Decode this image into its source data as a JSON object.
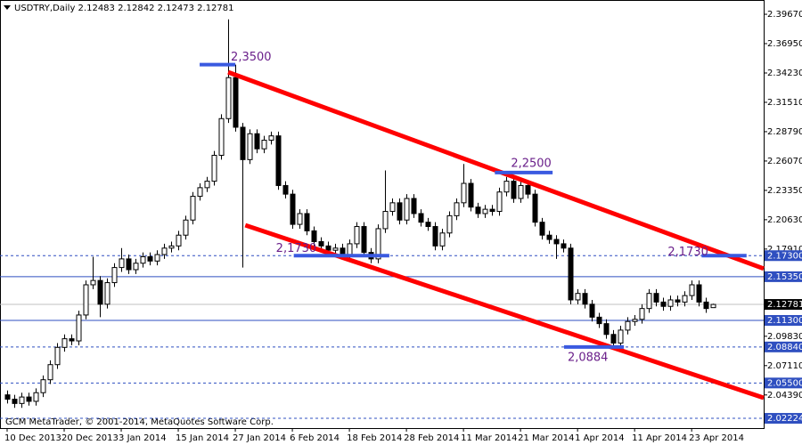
{
  "chart_data": {
    "type": "candlestick",
    "header": "USDTRY,Daily  2.12483 2.12842 2.12473 2.12781",
    "footer": "GCM MetaTrader, © 2001-2014, MetaQuotes Software Corp.",
    "categories": [
      "10 Dec 2013",
      null,
      null,
      null,
      null,
      null,
      null,
      null,
      "20 Dec 2013",
      null,
      null,
      null,
      null,
      null,
      null,
      null,
      "3 Jan 2014",
      null,
      null,
      null,
      null,
      null,
      null,
      null,
      "15 Jan 2014",
      null,
      null,
      null,
      null,
      null,
      null,
      null,
      "27 Jan 2014",
      null,
      null,
      null,
      null,
      null,
      null,
      null,
      "6 Feb 2014",
      null,
      null,
      null,
      null,
      null,
      null,
      null,
      "18 Feb 2014",
      null,
      null,
      null,
      null,
      null,
      null,
      null,
      "28 Feb 2014",
      null,
      null,
      null,
      null,
      null,
      null,
      null,
      "11 Mar 2014",
      null,
      null,
      null,
      null,
      null,
      null,
      null,
      "21 Mar 2014",
      null,
      null,
      null,
      null,
      null,
      null,
      null,
      "1 Apr 2014",
      null,
      null,
      null,
      null,
      null,
      null,
      null,
      "11 Apr 2014",
      null,
      null,
      null,
      null,
      null,
      null,
      null,
      "23 Apr 2014",
      null,
      null,
      null
    ],
    "open": [
      2.044,
      2.04,
      2.036,
      2.042,
      2.038,
      2.046,
      2.058,
      2.072,
      2.088,
      2.096,
      2.094,
      2.118,
      2.146,
      2.15,
      2.128,
      2.148,
      2.162,
      2.17,
      2.16,
      2.166,
      2.172,
      2.168,
      2.174,
      2.18,
      2.182,
      2.192,
      2.206,
      2.228,
      2.236,
      2.242,
      2.266,
      2.3,
      2.338,
      2.292,
      2.262,
      2.286,
      2.272,
      2.28,
      2.284,
      2.238,
      2.23,
      2.202,
      2.212,
      2.196,
      2.186,
      2.182,
      2.178,
      2.18,
      2.174,
      2.184,
      2.2,
      2.176,
      2.17,
      2.198,
      2.214,
      2.222,
      2.206,
      2.226,
      2.212,
      2.204,
      2.2,
      2.182,
      2.194,
      2.21,
      2.222,
      2.24,
      2.218,
      2.212,
      2.216,
      2.214,
      2.232,
      2.242,
      2.226,
      2.238,
      2.23,
      2.204,
      2.192,
      2.188,
      2.184,
      2.18,
      2.132,
      2.138,
      2.128,
      2.116,
      2.11,
      2.1,
      2.092,
      2.104,
      2.112,
      2.114,
      2.124,
      2.138,
      2.13,
      2.126,
      2.132,
      2.13,
      2.136,
      2.146,
      2.13,
      2.12483
    ],
    "high": [
      2.048,
      2.044,
      2.046,
      2.046,
      2.05,
      2.062,
      2.076,
      2.092,
      2.1,
      2.1,
      2.122,
      2.15,
      2.172,
      2.154,
      2.152,
      2.166,
      2.18,
      2.174,
      2.17,
      2.176,
      2.176,
      2.178,
      2.184,
      2.186,
      2.196,
      2.21,
      2.232,
      2.24,
      2.246,
      2.27,
      2.304,
      2.392,
      2.35,
      2.296,
      2.29,
      2.29,
      2.284,
      2.288,
      2.288,
      2.242,
      2.234,
      2.216,
      2.216,
      2.2,
      2.19,
      2.186,
      2.184,
      2.184,
      2.188,
      2.204,
      2.204,
      2.18,
      2.202,
      2.252,
      2.226,
      2.226,
      2.23,
      2.23,
      2.216,
      2.208,
      2.204,
      2.198,
      2.214,
      2.226,
      2.258,
      2.244,
      2.222,
      2.22,
      2.22,
      2.236,
      2.246,
      2.246,
      2.242,
      2.242,
      2.234,
      2.208,
      2.196,
      2.192,
      2.188,
      2.184,
      2.142,
      2.142,
      2.132,
      2.12,
      2.114,
      2.104,
      2.108,
      2.116,
      2.118,
      2.128,
      2.142,
      2.142,
      2.134,
      2.136,
      2.136,
      2.14,
      2.15,
      2.15,
      2.134,
      2.12842
    ],
    "low": [
      2.036,
      2.032,
      2.032,
      2.034,
      2.034,
      2.042,
      2.054,
      2.068,
      2.084,
      2.09,
      2.09,
      2.114,
      2.142,
      2.116,
      2.124,
      2.144,
      2.158,
      2.156,
      2.156,
      2.162,
      2.164,
      2.164,
      2.17,
      2.176,
      2.178,
      2.188,
      2.202,
      2.224,
      2.232,
      2.238,
      2.262,
      2.296,
      2.288,
      2.162,
      2.258,
      2.268,
      2.268,
      2.276,
      2.234,
      2.226,
      2.198,
      2.198,
      2.192,
      2.182,
      2.178,
      2.174,
      2.174,
      2.17,
      2.17,
      2.18,
      2.172,
      2.166,
      2.166,
      2.194,
      2.21,
      2.202,
      2.202,
      2.208,
      2.2,
      2.196,
      2.178,
      2.178,
      2.19,
      2.206,
      2.218,
      2.214,
      2.208,
      2.208,
      2.21,
      2.21,
      2.228,
      2.222,
      2.222,
      2.226,
      2.2,
      2.188,
      2.184,
      2.17,
      2.176,
      2.128,
      2.128,
      2.124,
      2.112,
      2.106,
      2.096,
      2.088,
      2.088,
      2.1,
      2.108,
      2.11,
      2.12,
      2.126,
      2.122,
      2.122,
      2.126,
      2.126,
      2.132,
      2.126,
      2.12,
      2.12473
    ],
    "close": [
      2.04,
      2.036,
      2.042,
      2.038,
      2.046,
      2.058,
      2.072,
      2.088,
      2.096,
      2.094,
      2.118,
      2.146,
      2.15,
      2.128,
      2.148,
      2.162,
      2.17,
      2.16,
      2.166,
      2.172,
      2.168,
      2.174,
      2.18,
      2.182,
      2.192,
      2.206,
      2.228,
      2.236,
      2.242,
      2.266,
      2.3,
      2.338,
      2.292,
      2.262,
      2.286,
      2.272,
      2.28,
      2.284,
      2.238,
      2.23,
      2.202,
      2.212,
      2.196,
      2.186,
      2.182,
      2.178,
      2.18,
      2.174,
      2.184,
      2.2,
      2.176,
      2.17,
      2.198,
      2.214,
      2.222,
      2.206,
      2.226,
      2.212,
      2.204,
      2.2,
      2.182,
      2.194,
      2.21,
      2.222,
      2.24,
      2.218,
      2.212,
      2.216,
      2.214,
      2.232,
      2.242,
      2.226,
      2.238,
      2.23,
      2.204,
      2.192,
      2.188,
      2.184,
      2.18,
      2.132,
      2.138,
      2.128,
      2.116,
      2.11,
      2.1,
      2.092,
      2.104,
      2.112,
      2.114,
      2.124,
      2.138,
      2.13,
      2.126,
      2.132,
      2.13,
      2.136,
      2.146,
      2.13,
      2.124,
      2.12781
    ],
    "up_color": "#ffffff",
    "down_color": "#000000",
    "xlim": [
      -1,
      106.1
    ],
    "ylim": [
      2.0132,
      2.4091
    ],
    "yticks": [
      {
        "value": 2.3967,
        "label": "2.39670"
      },
      {
        "value": 2.3695,
        "label": "2.36950"
      },
      {
        "value": 2.3423,
        "label": "2.34230"
      },
      {
        "value": 2.3151,
        "label": "2.31510"
      },
      {
        "value": 2.2879,
        "label": "2.28790"
      },
      {
        "value": 2.2607,
        "label": "2.26070"
      },
      {
        "value": 2.2335,
        "label": "2.23350"
      },
      {
        "value": 2.2063,
        "label": "2.20630"
      },
      {
        "value": 2.1791,
        "label": "2.17910"
      },
      {
        "value": 2.0983,
        "label": "2.09830"
      },
      {
        "value": 2.0711,
        "label": "2.07110"
      },
      {
        "value": 2.0439,
        "label": "2.04390"
      }
    ],
    "hlines": [
      {
        "value": 2.173,
        "label": "2.17300",
        "style": "dashed",
        "color": "#2f4fc0"
      },
      {
        "value": 2.1535,
        "label": "2.15350",
        "style": "solid",
        "color": "#2f4fc0"
      },
      {
        "value": 2.113,
        "label": "2.11300",
        "style": "solid",
        "color": "#2f4fc0"
      },
      {
        "value": 2.0884,
        "label": "2.08840",
        "style": "dashed",
        "color": "#2f4fc0"
      },
      {
        "value": 2.055,
        "label": "2.05500",
        "style": "dashed",
        "color": "#2f4fc0"
      },
      {
        "value": 2.02224,
        "label": "2.02224",
        "style": "dashed",
        "color": "#2f4fc0"
      }
    ],
    "last": {
      "value": 2.12781,
      "label": "2.12781",
      "color": "#c0c0c0"
    },
    "trendlines": [
      {
        "color": "#ff0000",
        "points": [
          [
            31,
            2.343
          ],
          [
            106.1,
            2.161
          ]
        ]
      },
      {
        "color": "#ff0000",
        "points": [
          [
            33.4,
            2.2012
          ],
          [
            106.1,
            2.0412
          ]
        ]
      }
    ],
    "levels": [
      {
        "value": 2.35,
        "label": "2,3500",
        "from": 27,
        "to": 32,
        "color": "#3a5ae0"
      },
      {
        "value": 2.25,
        "label": "2,2500",
        "from": 68.4,
        "to": 76.5,
        "color": "#3a5ae0"
      },
      {
        "value": 2.173,
        "label": "2,1730",
        "from": 40.2,
        "to": 53.6,
        "color": "#3a5ae0"
      },
      {
        "value": 2.173,
        "label": "2,1730",
        "from": 97.4,
        "to": 103.7,
        "color": "#3a5ae0"
      },
      {
        "value": 2.0884,
        "label": "2,0884",
        "from": 78.1,
        "to": 86.5,
        "color": "#3a5ae0"
      }
    ]
  }
}
